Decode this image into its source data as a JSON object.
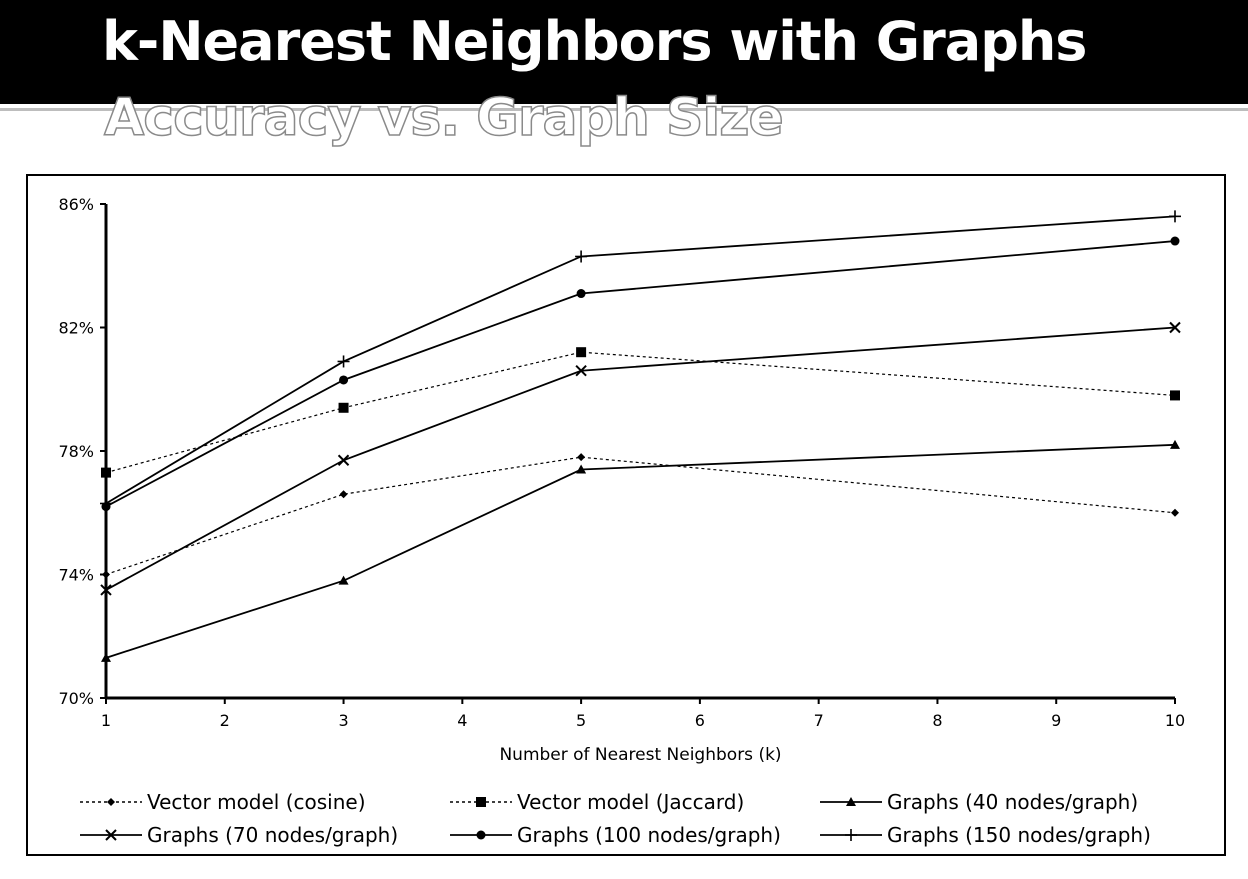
{
  "slide": {
    "title": "k-Nearest Neighbors with Graphs",
    "subtitle": "Accuracy vs. Graph Size"
  },
  "chart_data": {
    "type": "line",
    "title": "Accuracy vs. Graph Size",
    "xlabel": "Number of Nearest Neighbors (k)",
    "ylabel": "",
    "xlim": [
      1,
      10
    ],
    "ylim": [
      70,
      86
    ],
    "x_ticks": [
      "1",
      "2",
      "3",
      "4",
      "5",
      "6",
      "7",
      "8",
      "9",
      "10"
    ],
    "y_ticks": [
      "70%",
      "74%",
      "78%",
      "82%",
      "86%"
    ],
    "grid": false,
    "legend_position": "bottom",
    "series": [
      {
        "name": "Vector model (cosine)",
        "marker": "diamond",
        "dash": "dotted",
        "x": [
          1,
          3,
          5,
          10
        ],
        "y": [
          74.0,
          76.6,
          77.8,
          76.0
        ]
      },
      {
        "name": "Vector model (Jaccard)",
        "marker": "square",
        "dash": "dotted",
        "x": [
          1,
          3,
          5,
          10
        ],
        "y": [
          77.3,
          79.4,
          81.2,
          79.8
        ]
      },
      {
        "name": "Graphs (40 nodes/graph)",
        "marker": "triangle",
        "dash": "solid",
        "x": [
          1,
          3,
          5,
          10
        ],
        "y": [
          71.3,
          73.8,
          77.4,
          78.2
        ]
      },
      {
        "name": "Graphs (70 nodes/graph)",
        "marker": "x",
        "dash": "solid",
        "x": [
          1,
          3,
          5,
          10
        ],
        "y": [
          73.5,
          77.7,
          80.6,
          82.0
        ]
      },
      {
        "name": "Graphs (100 nodes/graph)",
        "marker": "circle",
        "dash": "solid",
        "x": [
          1,
          3,
          5,
          10
        ],
        "y": [
          76.2,
          80.3,
          83.1,
          84.8
        ]
      },
      {
        "name": "Graphs (150 nodes/graph)",
        "marker": "plus",
        "dash": "solid",
        "x": [
          1,
          3,
          5,
          10
        ],
        "y": [
          76.3,
          80.9,
          84.3,
          85.6
        ]
      }
    ]
  }
}
